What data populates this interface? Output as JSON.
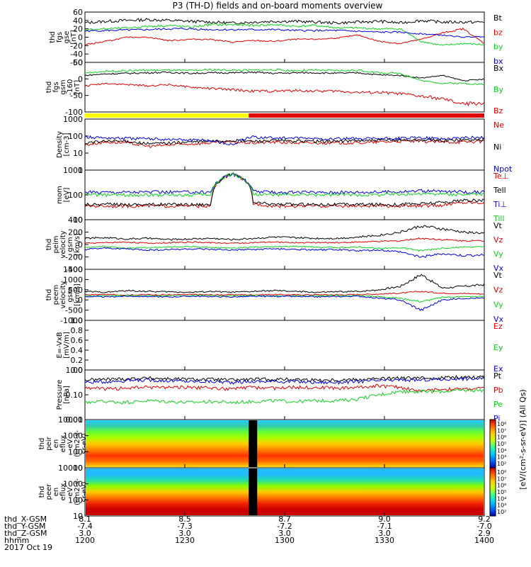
{
  "title": "P3 (TH-D) fields and on-board moments overview",
  "colors": {
    "black": "#000000",
    "red": "#e00000",
    "green": "#10d020",
    "blue": "#0000e0",
    "yellow": "#ffff00"
  },
  "bottom_axis": {
    "row_labels": [
      "thd_X-GSM",
      "thd_Y-GSM",
      "thd_Z-GSM",
      "hhmm",
      "2017 Oct 19"
    ],
    "ticks": [
      {
        "x": "8.1",
        "y": "-7.4",
        "z": "3.0",
        "t": "1200"
      },
      {
        "x": "8.5",
        "y": "-7.3",
        "z": "3.0",
        "t": "1230"
      },
      {
        "x": "8.7",
        "y": "-7.2",
        "z": "3.0",
        "t": "1300"
      },
      {
        "x": "9.0",
        "y": "-7.1",
        "z": "3.0",
        "t": "1330"
      },
      {
        "x": "9.2",
        "y": "-7.0",
        "z": "2.9",
        "t": "1400"
      }
    ]
  },
  "colorbar_label": "[eV/(cm²-s-sr-eV)] (All Qs)",
  "chart_data": [
    {
      "type": "line",
      "ylabel": [
        "thd",
        "fgs",
        "gse",
        "[nT]"
      ],
      "yticks": [
        "60",
        "40",
        "20",
        "0",
        "-20",
        "-40",
        "-60"
      ],
      "ylim": [
        -60,
        60
      ],
      "series": [
        {
          "name": "Bt",
          "color": "black",
          "values": [
            34,
            38,
            40,
            42,
            40,
            38,
            36,
            34,
            36,
            38,
            38,
            36,
            34,
            36,
            38,
            34,
            40,
            36,
            36,
            36
          ]
        },
        {
          "name": "bz",
          "color": "red",
          "values": [
            -18,
            -10,
            0,
            0,
            -8,
            -5,
            -5,
            -12,
            -8,
            -10,
            -5,
            -5,
            -2,
            5,
            -10,
            -15,
            -5,
            10,
            20,
            -15
          ]
        },
        {
          "name": "by",
          "color": "green",
          "values": [
            18,
            20,
            22,
            26,
            28,
            24,
            30,
            30,
            28,
            30,
            26,
            28,
            22,
            22,
            20,
            20,
            -10,
            -20,
            -15,
            -18
          ]
        },
        {
          "name": "bx",
          "color": "blue",
          "values": [
            15,
            16,
            17,
            18,
            20,
            20,
            18,
            18,
            18,
            18,
            16,
            16,
            16,
            14,
            12,
            12,
            8,
            5,
            0,
            2
          ]
        }
      ]
    },
    {
      "type": "line",
      "ylabel": [
        "thd",
        "fgs",
        "gsm",
        "-160",
        "[nT]"
      ],
      "yticks": [
        "50",
        "0",
        "-50",
        "-100"
      ],
      "ylim": [
        -130,
        60
      ],
      "series": [
        {
          "name": "Bx",
          "color": "black",
          "values": [
            10,
            16,
            18,
            20,
            22,
            18,
            20,
            20,
            22,
            18,
            20,
            20,
            18,
            20,
            12,
            10,
            0,
            10,
            -10,
            -5
          ]
        },
        {
          "name": "By",
          "color": "green",
          "values": [
            20,
            26,
            28,
            30,
            30,
            28,
            32,
            30,
            30,
            32,
            28,
            30,
            28,
            30,
            20,
            18,
            -10,
            -20,
            -20,
            -25
          ]
        },
        {
          "name": "Bz",
          "color": "red",
          "values": [
            -30,
            -20,
            -25,
            -30,
            -25,
            -35,
            -40,
            -45,
            -50,
            -50,
            -48,
            -50,
            -50,
            -55,
            -55,
            -60,
            -70,
            -80,
            -100,
            -95
          ]
        }
      ]
    },
    {
      "type": "bar",
      "segments": [
        {
          "from": 0,
          "to": 0.41,
          "color": "yellow"
        },
        {
          "from": 0.41,
          "to": 1,
          "color": "red"
        }
      ]
    },
    {
      "type": "line",
      "ylabel": [
        "Density",
        "[cm-3]"
      ],
      "log": true,
      "yticks": [
        "1000",
        "100",
        "10",
        "1"
      ],
      "ylim": [
        1,
        1000
      ],
      "series": [
        {
          "name": "Ne",
          "color": "red",
          "values": [
            30,
            45,
            40,
            25,
            30,
            35,
            40,
            45,
            40,
            45,
            40,
            40,
            40,
            40,
            45,
            50,
            50,
            45,
            45,
            50
          ]
        },
        {
          "name": "Ni",
          "color": "black",
          "values": [
            40,
            50,
            50,
            35,
            40,
            45,
            50,
            55,
            50,
            55,
            50,
            50,
            50,
            55,
            55,
            60,
            60,
            55,
            60,
            60
          ]
        },
        {
          "name": "Npot",
          "color": "blue",
          "values": [
            90,
            80,
            75,
            70,
            65,
            60,
            55,
            30,
            90,
            80,
            75,
            70,
            70,
            70,
            70,
            75,
            80,
            70,
            80,
            85
          ]
        }
      ]
    },
    {
      "type": "line",
      "ylabel": [
        "mom",
        "[eV]"
      ],
      "log": true,
      "yticks": [
        "1000",
        "100",
        "10"
      ],
      "ylim": [
        8,
        4000
      ],
      "series": [
        {
          "name": "Te⊥",
          "color": "red",
          "values": [
            45,
            45,
            45,
            45,
            45,
            45,
            45,
            2500,
            60,
            45,
            45,
            45,
            45,
            45,
            45,
            45,
            45,
            50,
            70,
            70
          ]
        },
        {
          "name": "Tell",
          "color": "black",
          "values": [
            55,
            55,
            55,
            55,
            55,
            55,
            55,
            2500,
            70,
            55,
            55,
            55,
            55,
            55,
            55,
            55,
            60,
            70,
            90,
            90
          ]
        },
        {
          "name": "Ti⊥",
          "color": "blue",
          "values": [
            250,
            260,
            260,
            260,
            260,
            260,
            260,
            2500,
            280,
            250,
            250,
            250,
            250,
            260,
            260,
            280,
            300,
            280,
            260,
            260
          ]
        },
        {
          "name": "Till",
          "color": "green",
          "values": [
            180,
            180,
            180,
            180,
            180,
            180,
            180,
            2500,
            200,
            180,
            180,
            180,
            180,
            180,
            190,
            200,
            210,
            200,
            190,
            190
          ]
        }
      ]
    },
    {
      "type": "line",
      "ylabel": [
        "thd",
        "peim",
        "velocity",
        "gsm",
        "[km/s]"
      ],
      "yticks": [
        "400",
        "200",
        "0",
        "-200",
        "-400"
      ],
      "ylim": [
        -400,
        400
      ],
      "series": [
        {
          "name": "Vt",
          "color": "black",
          "values": [
            100,
            110,
            90,
            100,
            80,
            90,
            100,
            80,
            100,
            120,
            110,
            100,
            100,
            120,
            150,
            200,
            300,
            250,
            200,
            180
          ]
        },
        {
          "name": "Vz",
          "color": "red",
          "values": [
            20,
            30,
            40,
            20,
            30,
            40,
            30,
            20,
            30,
            40,
            30,
            30,
            30,
            40,
            50,
            60,
            100,
            80,
            60,
            60
          ]
        },
        {
          "name": "Vy",
          "color": "green",
          "values": [
            -40,
            -30,
            -60,
            -50,
            -40,
            -30,
            -50,
            -60,
            -40,
            -40,
            -30,
            -40,
            -50,
            -40,
            -60,
            -50,
            -100,
            -60,
            -40,
            -40
          ]
        },
        {
          "name": "Vx",
          "color": "blue",
          "values": [
            -80,
            -60,
            -70,
            -90,
            -80,
            -70,
            -80,
            -90,
            -80,
            -70,
            -80,
            -90,
            -80,
            -100,
            -90,
            -120,
            -200,
            -150,
            -180,
            -170
          ]
        }
      ]
    },
    {
      "type": "line",
      "ylabel": [
        "thd",
        "peem",
        "velocity",
        "gsm",
        "[km/s]"
      ],
      "yticks": [
        "1500",
        "1000",
        "500",
        "0",
        "-500",
        "-1000"
      ],
      "ylim": [
        -1500,
        1500
      ],
      "series": [
        {
          "name": "Vt",
          "color": "black",
          "values": [
            200,
            150,
            250,
            200,
            180,
            150,
            200,
            150,
            200,
            250,
            200,
            150,
            180,
            200,
            300,
            500,
            1200,
            400,
            500,
            600
          ]
        },
        {
          "name": "Vz",
          "color": "red",
          "values": [
            0,
            20,
            -10,
            10,
            0,
            20,
            0,
            10,
            0,
            20,
            0,
            10,
            0,
            20,
            50,
            100,
            200,
            100,
            80,
            50
          ]
        },
        {
          "name": "Vy",
          "color": "green",
          "values": [
            -50,
            -60,
            -40,
            -50,
            -60,
            -40,
            -50,
            -60,
            -50,
            -40,
            -50,
            -60,
            -50,
            -40,
            -100,
            -200,
            -400,
            -150,
            -100,
            -100
          ]
        },
        {
          "name": "Vx",
          "color": "blue",
          "values": [
            -100,
            -120,
            -80,
            -100,
            -120,
            -80,
            -100,
            -120,
            -100,
            -80,
            -100,
            -120,
            -100,
            -80,
            -200,
            -300,
            -900,
            -300,
            -200,
            -200
          ]
        }
      ]
    },
    {
      "type": "line",
      "ylabel": [
        "E=-VxB",
        "[mV/m]"
      ],
      "yticks": [
        "1.0",
        "0.8",
        "0.6",
        "0.4",
        "0.2",
        "0.0"
      ],
      "ylim": [
        0,
        1
      ],
      "series": [
        {
          "name": "Ez",
          "color": "red",
          "values": []
        },
        {
          "name": "Ey",
          "color": "green",
          "values": []
        },
        {
          "name": "Ex",
          "color": "blue",
          "values": []
        }
      ]
    },
    {
      "type": "line",
      "ylabel": [
        "Pressure",
        "[nPa]"
      ],
      "log": true,
      "yticks": [
        "1.00",
        "0.10",
        "0.01"
      ],
      "ylim": [
        0.01,
        4
      ],
      "series": [
        {
          "name": "Pt",
          "color": "black",
          "values": [
            1.2,
            1.3,
            1.4,
            1.5,
            1.4,
            1.3,
            1.3,
            1.2,
            1.3,
            1.3,
            1.3,
            1.2,
            1.2,
            1.3,
            1.4,
            1.5,
            1.5,
            1.6,
            1.7,
            1.7
          ]
        },
        {
          "name": "Pb",
          "color": "red",
          "values": [
            0.5,
            0.4,
            0.45,
            0.5,
            0.5,
            0.5,
            0.45,
            0.4,
            0.5,
            0.45,
            0.5,
            0.5,
            0.45,
            0.5,
            0.6,
            0.5,
            0.3,
            0.4,
            0.4,
            0.45
          ]
        },
        {
          "name": "Pe",
          "color": "green",
          "values": [
            0.08,
            0.09,
            0.08,
            0.1,
            0.09,
            0.08,
            0.09,
            0.08,
            0.09,
            0.1,
            0.09,
            0.1,
            0.1,
            0.12,
            0.2,
            0.3,
            0.3,
            0.3,
            0.35,
            0.35
          ]
        },
        {
          "name": "Pi",
          "color": "blue",
          "values": [
            0.9,
            1.0,
            1.1,
            1.2,
            1.1,
            1.0,
            1.0,
            0.9,
            1.0,
            1.0,
            1.0,
            0.9,
            0.9,
            1.0,
            1.1,
            1.2,
            1.2,
            1.3,
            1.4,
            1.4
          ]
        }
      ]
    },
    {
      "type": "heatmap",
      "ylabel": [
        "thd",
        "peir",
        "en",
        "eflux",
        "eV",
        "(cm2-s-",
        "sr-eV)"
      ],
      "yticks": [
        "10000",
        "1000",
        "100",
        "10"
      ],
      "colorbar_ticks": [
        "10⁸",
        "10⁷",
        "10⁶",
        "10⁵",
        "10⁴",
        "10³",
        "10²"
      ]
    },
    {
      "type": "heatmap",
      "ylabel": [
        "thd",
        "peer",
        "en",
        "eflux",
        "eV",
        "(cm2-s-",
        "sr-eV)"
      ],
      "yticks": [
        "10000",
        "1000",
        "100",
        "10"
      ],
      "colorbar_ticks": [
        "10⁸",
        "10⁷",
        "10⁶",
        "10⁵",
        "10⁴",
        "10³",
        "10²"
      ]
    }
  ]
}
